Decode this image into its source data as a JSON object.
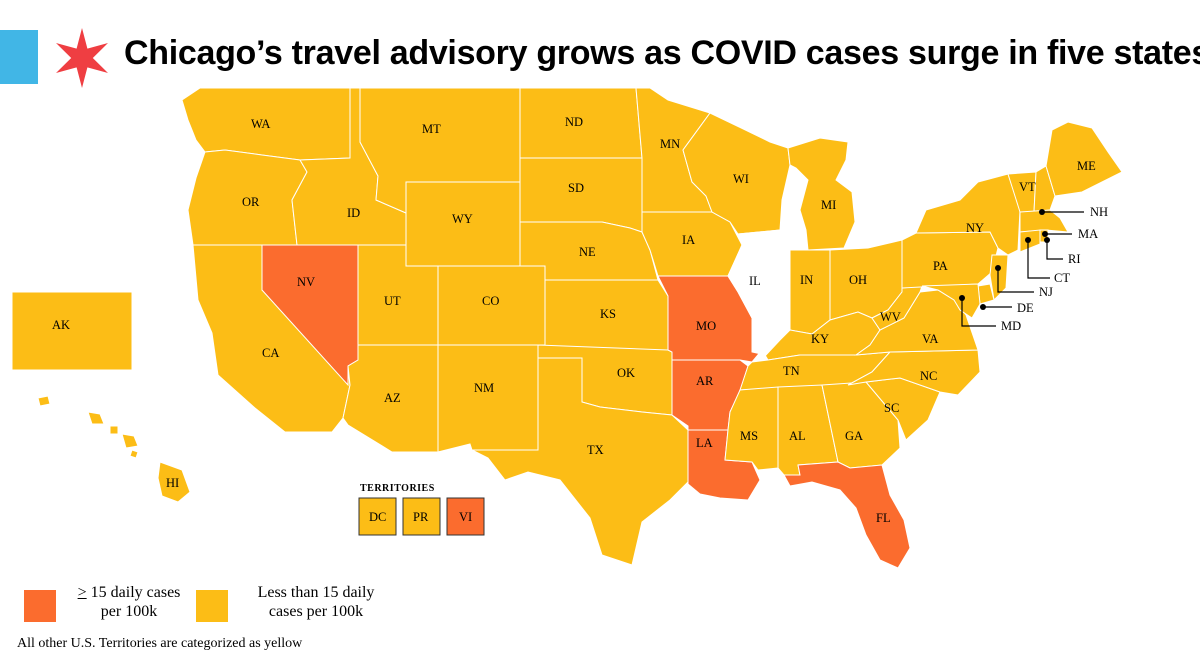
{
  "header": {
    "title": "Chicago’s travel advisory grows as COVID cases surge in five states"
  },
  "colors": {
    "high": "#fb6c2e",
    "low": "#fcbd16",
    "exempt": "#ffffff",
    "blue_bar": "#41b6e6",
    "star": "#ef3e42"
  },
  "map": {
    "states": [
      {
        "abbr": "WA",
        "category": "low"
      },
      {
        "abbr": "OR",
        "category": "low"
      },
      {
        "abbr": "CA",
        "category": "low"
      },
      {
        "abbr": "NV",
        "category": "high"
      },
      {
        "abbr": "ID",
        "category": "low"
      },
      {
        "abbr": "MT",
        "category": "low"
      },
      {
        "abbr": "WY",
        "category": "low"
      },
      {
        "abbr": "UT",
        "category": "low"
      },
      {
        "abbr": "CO",
        "category": "low"
      },
      {
        "abbr": "AZ",
        "category": "low"
      },
      {
        "abbr": "NM",
        "category": "low"
      },
      {
        "abbr": "ND",
        "category": "low"
      },
      {
        "abbr": "SD",
        "category": "low"
      },
      {
        "abbr": "NE",
        "category": "low"
      },
      {
        "abbr": "KS",
        "category": "low"
      },
      {
        "abbr": "OK",
        "category": "low"
      },
      {
        "abbr": "TX",
        "category": "low"
      },
      {
        "abbr": "MN",
        "category": "low"
      },
      {
        "abbr": "IA",
        "category": "low"
      },
      {
        "abbr": "MO",
        "category": "high"
      },
      {
        "abbr": "AR",
        "category": "high"
      },
      {
        "abbr": "LA",
        "category": "high"
      },
      {
        "abbr": "WI",
        "category": "low"
      },
      {
        "abbr": "IL",
        "category": "exempt"
      },
      {
        "abbr": "MI",
        "category": "low"
      },
      {
        "abbr": "IN",
        "category": "low"
      },
      {
        "abbr": "OH",
        "category": "low"
      },
      {
        "abbr": "KY",
        "category": "low"
      },
      {
        "abbr": "TN",
        "category": "low"
      },
      {
        "abbr": "MS",
        "category": "low"
      },
      {
        "abbr": "AL",
        "category": "low"
      },
      {
        "abbr": "GA",
        "category": "low"
      },
      {
        "abbr": "FL",
        "category": "high"
      },
      {
        "abbr": "SC",
        "category": "low"
      },
      {
        "abbr": "NC",
        "category": "low"
      },
      {
        "abbr": "VA",
        "category": "low"
      },
      {
        "abbr": "WV",
        "category": "low"
      },
      {
        "abbr": "PA",
        "category": "low"
      },
      {
        "abbr": "NY",
        "category": "low"
      },
      {
        "abbr": "VT",
        "category": "low"
      },
      {
        "abbr": "ME",
        "category": "low"
      },
      {
        "abbr": "NH",
        "category": "low"
      },
      {
        "abbr": "MA",
        "category": "low"
      },
      {
        "abbr": "RI",
        "category": "low"
      },
      {
        "abbr": "CT",
        "category": "low"
      },
      {
        "abbr": "NJ",
        "category": "low"
      },
      {
        "abbr": "DE",
        "category": "low"
      },
      {
        "abbr": "MD",
        "category": "low"
      },
      {
        "abbr": "AK",
        "category": "low"
      },
      {
        "abbr": "HI",
        "category": "low"
      }
    ],
    "territories": {
      "title": "TERRITORIES",
      "items": [
        {
          "abbr": "DC",
          "category": "low"
        },
        {
          "abbr": "PR",
          "category": "low"
        },
        {
          "abbr": "VI",
          "category": "high"
        }
      ]
    }
  },
  "legend": {
    "high_symbol": ">",
    "high_label": " 15 daily cases",
    "high_label_line2": "per 100k",
    "low_label_line1": "Less than 15 daily",
    "low_label_line2": "cases per 100k"
  },
  "footnote": "All other U.S. Territories are categorized as yellow"
}
